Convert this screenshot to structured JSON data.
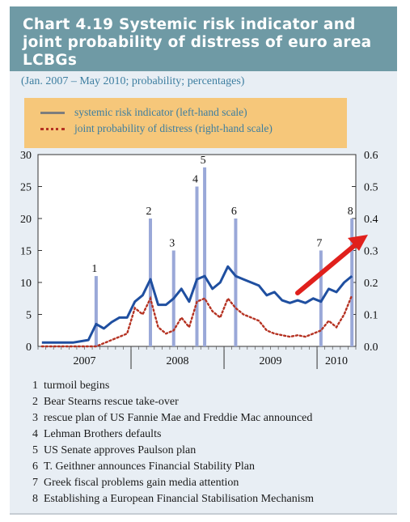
{
  "header": {
    "title": "Chart 4.19 Systemic risk indicator and joint probability of distress of euro area LCBGs",
    "subtitle": "(Jan. 2007 – May 2010; probability; percentages)"
  },
  "legend": {
    "series1": "systemic risk indicator (left-hand scale)",
    "series2": "joint probability of distress (right-hand scale)"
  },
  "chart_data": {
    "type": "line",
    "title": "Systemic risk indicator and joint probability of distress of euro area LCBGs",
    "x_unit": "month (Jan. 2007 – May 2010)",
    "x_range": [
      "2007-01",
      "2010-05"
    ],
    "x_tick_labels": [
      "2007",
      "2008",
      "2009",
      "2010"
    ],
    "left_axis": {
      "ticks": [
        0,
        5,
        10,
        15,
        20,
        25,
        30
      ],
      "ylim": [
        0,
        30
      ]
    },
    "right_axis": {
      "ticks": [
        "0.0",
        "0.1",
        "0.2",
        "0.3",
        "0.4",
        "0.5",
        "0.6"
      ],
      "ylim": [
        0,
        0.6
      ]
    },
    "series": [
      {
        "name": "systemic risk indicator (left-hand scale)",
        "axis": "left",
        "color": "#1f4fa0",
        "points": [
          [
            "2007-01",
            0.6
          ],
          [
            "2007-03",
            0.6
          ],
          [
            "2007-05",
            0.6
          ],
          [
            "2007-07",
            1.0
          ],
          [
            "2007-08",
            3.5
          ],
          [
            "2007-09",
            2.8
          ],
          [
            "2007-10",
            3.8
          ],
          [
            "2007-11",
            4.5
          ],
          [
            "2007-12",
            4.5
          ],
          [
            "2008-01",
            7.0
          ],
          [
            "2008-02",
            8.0
          ],
          [
            "2008-03",
            10.5
          ],
          [
            "2008-04",
            6.5
          ],
          [
            "2008-05",
            6.5
          ],
          [
            "2008-06",
            7.5
          ],
          [
            "2008-07",
            9.0
          ],
          [
            "2008-08",
            7.0
          ],
          [
            "2008-09",
            10.5
          ],
          [
            "2008-10",
            11.0
          ],
          [
            "2008-11",
            9.0
          ],
          [
            "2008-12",
            10.0
          ],
          [
            "2009-01",
            12.5
          ],
          [
            "2009-02",
            11.0
          ],
          [
            "2009-03",
            10.5
          ],
          [
            "2009-04",
            10.0
          ],
          [
            "2009-05",
            9.5
          ],
          [
            "2009-06",
            8.0
          ],
          [
            "2009-07",
            8.5
          ],
          [
            "2009-08",
            7.2
          ],
          [
            "2009-09",
            6.8
          ],
          [
            "2009-10",
            7.2
          ],
          [
            "2009-11",
            6.8
          ],
          [
            "2009-12",
            7.5
          ],
          [
            "2010-01",
            7.0
          ],
          [
            "2010-02",
            9.0
          ],
          [
            "2010-03",
            8.5
          ],
          [
            "2010-04",
            10.0
          ],
          [
            "2010-05",
            11.0
          ]
        ]
      },
      {
        "name": "joint probability of distress (right-hand scale)",
        "axis": "right",
        "color": "#b53222",
        "points": [
          [
            "2007-01",
            0.0
          ],
          [
            "2007-05",
            0.0
          ],
          [
            "2007-08",
            0.0
          ],
          [
            "2007-10",
            0.02
          ],
          [
            "2007-12",
            0.04
          ],
          [
            "2008-01",
            0.12
          ],
          [
            "2008-02",
            0.1
          ],
          [
            "2008-03",
            0.15
          ],
          [
            "2008-04",
            0.06
          ],
          [
            "2008-05",
            0.04
          ],
          [
            "2008-06",
            0.05
          ],
          [
            "2008-07",
            0.09
          ],
          [
            "2008-08",
            0.06
          ],
          [
            "2008-09",
            0.14
          ],
          [
            "2008-10",
            0.15
          ],
          [
            "2008-11",
            0.11
          ],
          [
            "2008-12",
            0.09
          ],
          [
            "2009-01",
            0.15
          ],
          [
            "2009-02",
            0.12
          ],
          [
            "2009-03",
            0.1
          ],
          [
            "2009-04",
            0.09
          ],
          [
            "2009-05",
            0.08
          ],
          [
            "2009-06",
            0.05
          ],
          [
            "2009-07",
            0.04
          ],
          [
            "2009-08",
            0.035
          ],
          [
            "2009-09",
            0.03
          ],
          [
            "2009-10",
            0.035
          ],
          [
            "2009-11",
            0.03
          ],
          [
            "2009-12",
            0.04
          ],
          [
            "2010-01",
            0.05
          ],
          [
            "2010-02",
            0.08
          ],
          [
            "2010-03",
            0.06
          ],
          [
            "2010-04",
            0.1
          ],
          [
            "2010-05",
            0.16
          ]
        ]
      }
    ],
    "events": [
      {
        "label": "1",
        "date": "2007-08",
        "height": 11
      },
      {
        "label": "2",
        "date": "2008-03",
        "height": 20
      },
      {
        "label": "3",
        "date": "2008-06",
        "height": 15
      },
      {
        "label": "4",
        "date": "2008-09",
        "height": 25
      },
      {
        "label": "5",
        "date": "2008-10",
        "height": 28
      },
      {
        "label": "6",
        "date": "2009-02",
        "height": 20
      },
      {
        "label": "7",
        "date": "2010-01",
        "height": 15
      },
      {
        "label": "8",
        "date": "2010-05",
        "height": 20
      }
    ],
    "grid": false
  },
  "notes": [
    {
      "num": "1",
      "text": "turmoil begins"
    },
    {
      "num": "2",
      "text": "Bear Stearns rescue take-over"
    },
    {
      "num": "3",
      "text": "rescue plan of US Fannie Mae and Freddie Mac announced"
    },
    {
      "num": "4",
      "text": "Lehman Brothers defaults"
    },
    {
      "num": "5",
      "text": "US Senate approves Paulson plan"
    },
    {
      "num": "6",
      "text": "T. Geithner announces Financial Stability Plan"
    },
    {
      "num": "7",
      "text": "Greek fiscal problems gain media attention"
    },
    {
      "num": "8",
      "text": "Establishing a European Financial Stabilisation Mechanism"
    }
  ],
  "colors": {
    "title_bar": "#6f9aa5",
    "panel": "#e8eef4",
    "legend_bg": "#f6c77a",
    "accent_text": "#3d7ea0",
    "event_bar": "#9aa8d8",
    "arrow": "#e0201c"
  }
}
